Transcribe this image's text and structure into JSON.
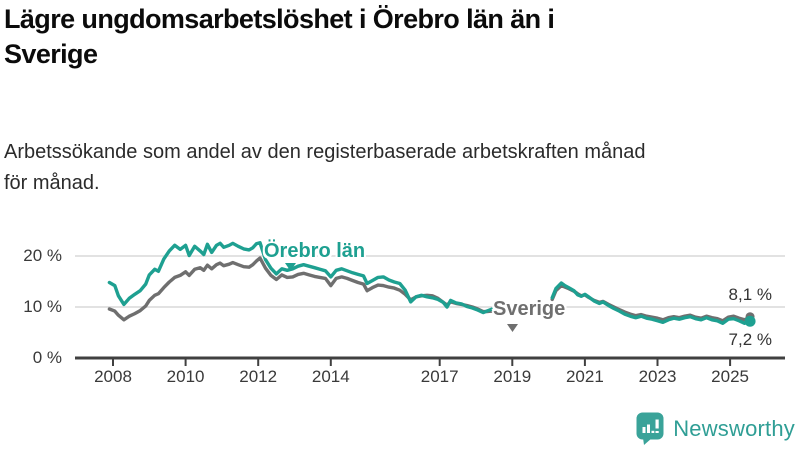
{
  "header": {
    "title": "Lägre ungdomsarbetslöshet i Örebro län än i Sverige",
    "subtitle": "Arbetssökande som andel av den registerbaserade arbetskraften månad för månad."
  },
  "footer": {
    "brand": "Newsworthy"
  },
  "colors": {
    "orebro_line": "#1ea091",
    "sverige_line": "#6f6f6f",
    "grid": "#d8d8d8",
    "axis": "#404040",
    "axis_text": "#3a3a3a",
    "brand": "#2f9e95",
    "brand_icon": "#3aa399"
  },
  "chart_data": {
    "type": "line",
    "unit": "%",
    "x_axis": {
      "ticks": [
        2008,
        2010,
        2012,
        2014,
        2017,
        2019,
        2021,
        2023,
        2025
      ],
      "tick_labels": [
        "2008",
        "2010",
        "2012",
        "2014",
        "2017",
        "2019",
        "2021",
        "2023",
        "2025"
      ],
      "range": [
        2007.8,
        2025.9
      ]
    },
    "y_axis": {
      "ticks": [
        0,
        10,
        20
      ],
      "tick_labels": [
        "0 %",
        "10 %",
        "20 %"
      ],
      "gridlines": [
        10,
        20
      ],
      "range": [
        0,
        25
      ]
    },
    "data_break": {
      "from": 2018.45,
      "to": 2020.1
    },
    "series": [
      {
        "name": "Örebro län",
        "color": "#1ea091",
        "end_label": "7,2 %",
        "end_value": 7.2,
        "segments": [
          [
            [
              2007.9,
              14.8
            ],
            [
              2008.05,
              14.2
            ],
            [
              2008.15,
              12.2
            ],
            [
              2008.3,
              10.5
            ],
            [
              2008.45,
              11.7
            ],
            [
              2008.6,
              12.5
            ],
            [
              2008.75,
              13.2
            ],
            [
              2008.9,
              14.5
            ],
            [
              2009.0,
              16.3
            ],
            [
              2009.15,
              17.4
            ],
            [
              2009.25,
              17.0
            ],
            [
              2009.4,
              19.4
            ],
            [
              2009.55,
              21.0
            ],
            [
              2009.7,
              22.1
            ],
            [
              2009.85,
              21.3
            ],
            [
              2010.0,
              22.1
            ],
            [
              2010.1,
              20.1
            ],
            [
              2010.25,
              21.9
            ],
            [
              2010.4,
              21.0
            ],
            [
              2010.5,
              20.3
            ],
            [
              2010.6,
              22.3
            ],
            [
              2010.72,
              20.7
            ],
            [
              2010.85,
              22.1
            ],
            [
              2010.95,
              22.5
            ],
            [
              2011.05,
              21.7
            ],
            [
              2011.2,
              22.1
            ],
            [
              2011.3,
              22.5
            ],
            [
              2011.45,
              21.9
            ],
            [
              2011.6,
              21.4
            ],
            [
              2011.75,
              21.2
            ],
            [
              2011.85,
              21.6
            ],
            [
              2011.95,
              22.4
            ],
            [
              2012.05,
              22.6
            ],
            [
              2012.2,
              19.3
            ],
            [
              2012.35,
              17.6
            ],
            [
              2012.5,
              16.5
            ],
            [
              2012.65,
              17.5
            ],
            [
              2012.8,
              17.2
            ],
            [
              2012.95,
              17.5
            ],
            [
              2013.1,
              18.0
            ],
            [
              2013.25,
              18.3
            ],
            [
              2013.4,
              18.0
            ],
            [
              2013.55,
              17.7
            ],
            [
              2013.7,
              17.4
            ],
            [
              2013.85,
              17.1
            ],
            [
              2014.0,
              15.9
            ],
            [
              2014.15,
              17.2
            ],
            [
              2014.3,
              17.5
            ],
            [
              2014.45,
              17.1
            ],
            [
              2014.6,
              16.7
            ],
            [
              2014.75,
              16.4
            ],
            [
              2014.9,
              16.1
            ],
            [
              2015.0,
              14.6
            ],
            [
              2015.15,
              15.2
            ],
            [
              2015.3,
              15.8
            ],
            [
              2015.45,
              15.9
            ],
            [
              2015.6,
              15.3
            ],
            [
              2015.75,
              14.9
            ],
            [
              2015.9,
              14.6
            ],
            [
              2016.05,
              13.3
            ],
            [
              2016.2,
              11.0
            ],
            [
              2016.35,
              12.0
            ],
            [
              2016.5,
              12.3
            ],
            [
              2016.65,
              12.0
            ],
            [
              2016.8,
              11.8
            ],
            [
              2016.95,
              11.5
            ],
            [
              2017.1,
              10.9
            ],
            [
              2017.2,
              10.0
            ],
            [
              2017.3,
              11.3
            ],
            [
              2017.45,
              10.8
            ],
            [
              2017.6,
              10.6
            ],
            [
              2017.75,
              10.1
            ],
            [
              2017.9,
              9.8
            ],
            [
              2018.05,
              9.4
            ],
            [
              2018.2,
              8.9
            ],
            [
              2018.3,
              9.2
            ],
            [
              2018.45,
              9.6
            ]
          ],
          [
            [
              2020.1,
              11.8
            ],
            [
              2020.2,
              13.6
            ],
            [
              2020.35,
              14.7
            ],
            [
              2020.45,
              14.2
            ],
            [
              2020.55,
              13.8
            ],
            [
              2020.7,
              13.2
            ],
            [
              2020.8,
              12.4
            ],
            [
              2020.9,
              12.1
            ],
            [
              2021.0,
              12.5
            ],
            [
              2021.1,
              12.0
            ],
            [
              2021.25,
              11.2
            ],
            [
              2021.4,
              10.7
            ],
            [
              2021.5,
              11.0
            ],
            [
              2021.65,
              10.3
            ],
            [
              2021.8,
              9.7
            ],
            [
              2021.95,
              9.2
            ],
            [
              2022.1,
              8.6
            ],
            [
              2022.25,
              8.2
            ],
            [
              2022.4,
              7.9
            ],
            [
              2022.55,
              8.2
            ],
            [
              2022.7,
              7.8
            ],
            [
              2022.85,
              7.6
            ],
            [
              2023.0,
              7.3
            ],
            [
              2023.15,
              7.0
            ],
            [
              2023.3,
              7.5
            ],
            [
              2023.45,
              7.8
            ],
            [
              2023.6,
              7.6
            ],
            [
              2023.75,
              7.9
            ],
            [
              2023.9,
              8.1
            ],
            [
              2024.05,
              7.7
            ],
            [
              2024.2,
              7.5
            ],
            [
              2024.35,
              7.9
            ],
            [
              2024.5,
              7.5
            ],
            [
              2024.65,
              7.3
            ],
            [
              2024.8,
              6.8
            ],
            [
              2024.95,
              7.6
            ],
            [
              2025.1,
              7.7
            ],
            [
              2025.25,
              7.3
            ],
            [
              2025.4,
              6.8
            ],
            [
              2025.55,
              7.2
            ]
          ]
        ]
      },
      {
        "name": "Sverige",
        "color": "#6f6f6f",
        "end_label": "8,1 %",
        "end_value": 8.1,
        "segments": [
          [
            [
              2007.9,
              9.6
            ],
            [
              2008.05,
              9.2
            ],
            [
              2008.15,
              8.4
            ],
            [
              2008.3,
              7.5
            ],
            [
              2008.45,
              8.2
            ],
            [
              2008.6,
              8.7
            ],
            [
              2008.75,
              9.3
            ],
            [
              2008.9,
              10.2
            ],
            [
              2009.0,
              11.3
            ],
            [
              2009.15,
              12.3
            ],
            [
              2009.25,
              12.6
            ],
            [
              2009.4,
              13.8
            ],
            [
              2009.55,
              14.9
            ],
            [
              2009.7,
              15.8
            ],
            [
              2009.85,
              16.2
            ],
            [
              2010.0,
              16.9
            ],
            [
              2010.1,
              16.2
            ],
            [
              2010.25,
              17.4
            ],
            [
              2010.4,
              17.7
            ],
            [
              2010.5,
              17.2
            ],
            [
              2010.6,
              18.2
            ],
            [
              2010.72,
              17.5
            ],
            [
              2010.85,
              18.3
            ],
            [
              2010.95,
              18.6
            ],
            [
              2011.05,
              18.1
            ],
            [
              2011.2,
              18.4
            ],
            [
              2011.3,
              18.7
            ],
            [
              2011.45,
              18.3
            ],
            [
              2011.6,
              17.9
            ],
            [
              2011.75,
              17.8
            ],
            [
              2011.85,
              18.3
            ],
            [
              2011.95,
              19.0
            ],
            [
              2012.05,
              19.6
            ],
            [
              2012.2,
              17.6
            ],
            [
              2012.35,
              16.2
            ],
            [
              2012.5,
              15.4
            ],
            [
              2012.65,
              16.3
            ],
            [
              2012.8,
              15.8
            ],
            [
              2012.95,
              15.9
            ],
            [
              2013.1,
              16.4
            ],
            [
              2013.25,
              16.6
            ],
            [
              2013.4,
              16.3
            ],
            [
              2013.55,
              16.0
            ],
            [
              2013.7,
              15.8
            ],
            [
              2013.85,
              15.6
            ],
            [
              2014.0,
              14.2
            ],
            [
              2014.15,
              15.6
            ],
            [
              2014.3,
              15.9
            ],
            [
              2014.45,
              15.6
            ],
            [
              2014.6,
              15.2
            ],
            [
              2014.75,
              14.8
            ],
            [
              2014.9,
              14.5
            ],
            [
              2015.0,
              13.2
            ],
            [
              2015.15,
              13.8
            ],
            [
              2015.3,
              14.3
            ],
            [
              2015.45,
              14.2
            ],
            [
              2015.6,
              13.9
            ],
            [
              2015.75,
              13.7
            ],
            [
              2015.9,
              13.3
            ],
            [
              2016.05,
              12.5
            ],
            [
              2016.2,
              11.4
            ],
            [
              2016.35,
              12.0
            ],
            [
              2016.5,
              12.2
            ],
            [
              2016.65,
              12.3
            ],
            [
              2016.8,
              12.2
            ],
            [
              2016.95,
              11.7
            ],
            [
              2017.1,
              10.9
            ],
            [
              2017.2,
              10.4
            ],
            [
              2017.3,
              11.0
            ],
            [
              2017.45,
              10.7
            ],
            [
              2017.6,
              10.5
            ],
            [
              2017.75,
              10.3
            ],
            [
              2017.9,
              10.0
            ],
            [
              2018.05,
              9.6
            ],
            [
              2018.2,
              9.1
            ],
            [
              2018.3,
              9.1
            ],
            [
              2018.45,
              9.2
            ]
          ],
          [
            [
              2020.1,
              11.5
            ],
            [
              2020.2,
              13.2
            ],
            [
              2020.35,
              14.2
            ],
            [
              2020.45,
              13.9
            ],
            [
              2020.55,
              13.6
            ],
            [
              2020.7,
              13.1
            ],
            [
              2020.8,
              12.6
            ],
            [
              2020.9,
              12.2
            ],
            [
              2021.0,
              12.4
            ],
            [
              2021.1,
              11.9
            ],
            [
              2021.25,
              11.3
            ],
            [
              2021.4,
              10.9
            ],
            [
              2021.5,
              11.1
            ],
            [
              2021.65,
              10.5
            ],
            [
              2021.8,
              10.0
            ],
            [
              2021.95,
              9.5
            ],
            [
              2022.1,
              9.0
            ],
            [
              2022.25,
              8.6
            ],
            [
              2022.4,
              8.3
            ],
            [
              2022.55,
              8.5
            ],
            [
              2022.7,
              8.2
            ],
            [
              2022.85,
              8.0
            ],
            [
              2023.0,
              7.8
            ],
            [
              2023.15,
              7.5
            ],
            [
              2023.3,
              7.9
            ],
            [
              2023.45,
              8.1
            ],
            [
              2023.6,
              7.9
            ],
            [
              2023.75,
              8.2
            ],
            [
              2023.9,
              8.4
            ],
            [
              2024.05,
              8.0
            ],
            [
              2024.2,
              7.8
            ],
            [
              2024.35,
              8.2
            ],
            [
              2024.5,
              7.9
            ],
            [
              2024.65,
              7.7
            ],
            [
              2024.8,
              7.3
            ],
            [
              2024.95,
              8.0
            ],
            [
              2025.1,
              8.2
            ],
            [
              2025.25,
              7.8
            ],
            [
              2025.4,
              7.5
            ],
            [
              2025.55,
              8.1
            ]
          ]
        ]
      }
    ]
  }
}
